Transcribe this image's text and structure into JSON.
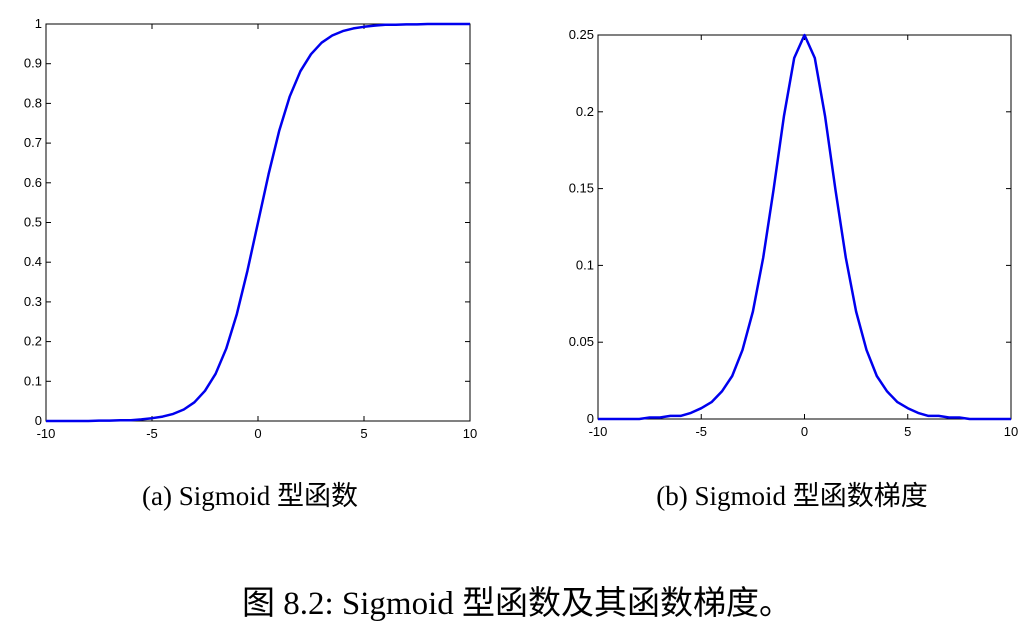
{
  "chart_data": [
    {
      "type": "line",
      "caption": "(a) Sigmoid 型函数",
      "x": [
        -10,
        -9.5,
        -9,
        -8.5,
        -8,
        -7.5,
        -7,
        -6.5,
        -6,
        -5.5,
        -5,
        -4.5,
        -4,
        -3.5,
        -3,
        -2.5,
        -2,
        -1.5,
        -1,
        -0.5,
        0,
        0.5,
        1,
        1.5,
        2,
        2.5,
        3,
        3.5,
        4,
        4.5,
        5,
        5.5,
        6,
        6.5,
        7,
        7.5,
        8,
        8.5,
        9,
        9.5,
        10
      ],
      "values": [
        0,
        0,
        0,
        0,
        0,
        0.001,
        0.001,
        0.002,
        0.002,
        0.004,
        0.007,
        0.011,
        0.018,
        0.029,
        0.047,
        0.076,
        0.119,
        0.182,
        0.269,
        0.378,
        0.5,
        0.622,
        0.731,
        0.818,
        0.881,
        0.924,
        0.953,
        0.971,
        0.982,
        0.989,
        0.993,
        0.996,
        0.998,
        0.998,
        0.999,
        0.999,
        1,
        1,
        1,
        1,
        1
      ],
      "color": "#0000ee",
      "xlim": [
        -10,
        10
      ],
      "xticks": [
        -10,
        -5,
        0,
        5,
        10
      ],
      "ylim": [
        0,
        1
      ],
      "yticks": [
        0,
        0.1,
        0.2,
        0.3,
        0.4,
        0.5,
        0.6,
        0.7,
        0.8,
        0.9,
        1
      ]
    },
    {
      "type": "line",
      "caption": "(b) Sigmoid 型函数梯度",
      "x": [
        -10,
        -9.5,
        -9,
        -8.5,
        -8,
        -7.5,
        -7,
        -6.5,
        -6,
        -5.5,
        -5,
        -4.5,
        -4,
        -3.5,
        -3,
        -2.5,
        -2,
        -1.5,
        -1,
        -0.5,
        0,
        0.5,
        1,
        1.5,
        2,
        2.5,
        3,
        3.5,
        4,
        4.5,
        5,
        5.5,
        6,
        6.5,
        7,
        7.5,
        8,
        8.5,
        9,
        9.5,
        10
      ],
      "values": [
        0,
        0,
        0,
        0,
        0,
        0.001,
        0.001,
        0.002,
        0.002,
        0.004,
        0.007,
        0.011,
        0.018,
        0.028,
        0.045,
        0.07,
        0.105,
        0.149,
        0.197,
        0.235,
        0.25,
        0.235,
        0.197,
        0.149,
        0.105,
        0.07,
        0.045,
        0.028,
        0.018,
        0.011,
        0.007,
        0.004,
        0.002,
        0.002,
        0.001,
        0.001,
        0,
        0,
        0,
        0,
        0
      ],
      "color": "#0000ee",
      "xlim": [
        -10,
        10
      ],
      "xticks": [
        -10,
        -5,
        0,
        5,
        10
      ],
      "ylim": [
        0,
        0.25
      ],
      "yticks": [
        0,
        0.05,
        0.1,
        0.15,
        0.2,
        0.25
      ]
    }
  ],
  "figure_caption": "图 8.2: Sigmoid 型函数及其函数梯度。"
}
